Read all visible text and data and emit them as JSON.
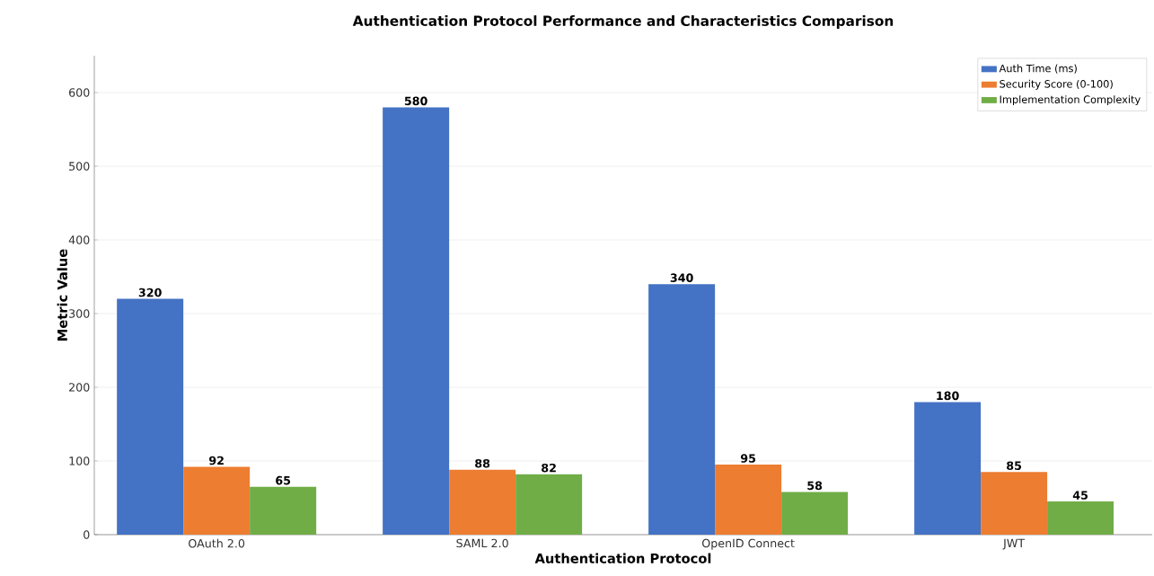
{
  "chart_data": {
    "type": "bar",
    "title": "Authentication Protocol Performance and Characteristics Comparison",
    "xlabel": "Authentication Protocol",
    "ylabel": "Metric Value",
    "categories": [
      "OAuth 2.0",
      "SAML 2.0",
      "OpenID Connect",
      "JWT"
    ],
    "series": [
      {
        "name": "Auth Time (ms)",
        "color": "#4472c4",
        "values": [
          320,
          580,
          340,
          180
        ]
      },
      {
        "name": "Security Score (0-100)",
        "color": "#ed7d31",
        "values": [
          92,
          88,
          95,
          85
        ]
      },
      {
        "name": "Implementation Complexity",
        "color": "#70ad47",
        "values": [
          65,
          82,
          58,
          45
        ]
      }
    ],
    "ylim": [
      0,
      650
    ],
    "yticks": [
      0,
      100,
      200,
      300,
      400,
      500,
      600
    ],
    "grid": "y",
    "legend": "top right",
    "data_labels": true
  }
}
